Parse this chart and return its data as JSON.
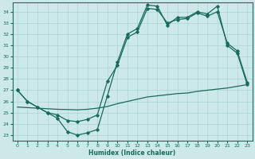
{
  "xlabel": "Humidex (Indice chaleur)",
  "ylabel": "",
  "bg_color": "#cce8e8",
  "grid_color": "#aad4d4",
  "line_color": "#1a6b5a",
  "xlim": [
    -0.5,
    23.5
  ],
  "ylim": [
    22.5,
    34.8
  ],
  "yticks": [
    23,
    24,
    25,
    26,
    27,
    28,
    29,
    30,
    31,
    32,
    33,
    34
  ],
  "xticks": [
    0,
    1,
    2,
    3,
    4,
    5,
    6,
    7,
    8,
    9,
    10,
    11,
    12,
    13,
    14,
    15,
    16,
    17,
    18,
    19,
    20,
    21,
    22,
    23
  ],
  "line1_x": [
    0,
    1,
    2,
    3,
    4,
    5,
    6,
    7,
    8,
    9,
    10,
    11,
    12,
    13,
    14,
    15,
    16,
    17,
    18,
    19,
    20,
    21,
    22,
    23
  ],
  "line1_y": [
    27.0,
    26.0,
    25.5,
    25.0,
    24.5,
    23.3,
    23.0,
    23.2,
    23.5,
    26.5,
    29.5,
    32.0,
    32.5,
    34.6,
    34.5,
    32.8,
    33.5,
    33.5,
    34.0,
    33.8,
    34.5,
    31.0,
    30.3,
    27.5
  ],
  "line2_x": [
    0,
    1,
    2,
    3,
    4,
    5,
    6,
    7,
    8,
    9,
    10,
    11,
    12,
    13,
    14,
    15,
    16,
    17,
    18,
    19,
    20,
    21,
    22,
    23
  ],
  "line2_y": [
    27.0,
    26.0,
    25.5,
    25.0,
    24.8,
    24.3,
    24.2,
    24.4,
    24.8,
    27.8,
    29.2,
    31.7,
    32.2,
    34.3,
    34.2,
    33.0,
    33.3,
    33.4,
    33.9,
    33.6,
    34.0,
    31.2,
    30.5,
    27.7
  ],
  "line3_x": [
    0,
    1,
    2,
    3,
    4,
    5,
    6,
    7,
    8,
    9,
    10,
    11,
    12,
    13,
    14,
    15,
    16,
    17,
    18,
    19,
    20,
    21,
    22,
    23
  ],
  "line3_y": [
    25.5,
    25.45,
    25.4,
    25.35,
    25.3,
    25.28,
    25.25,
    25.3,
    25.4,
    25.55,
    25.8,
    26.0,
    26.2,
    26.4,
    26.5,
    26.6,
    26.7,
    26.75,
    26.9,
    27.0,
    27.1,
    27.2,
    27.35,
    27.5
  ]
}
